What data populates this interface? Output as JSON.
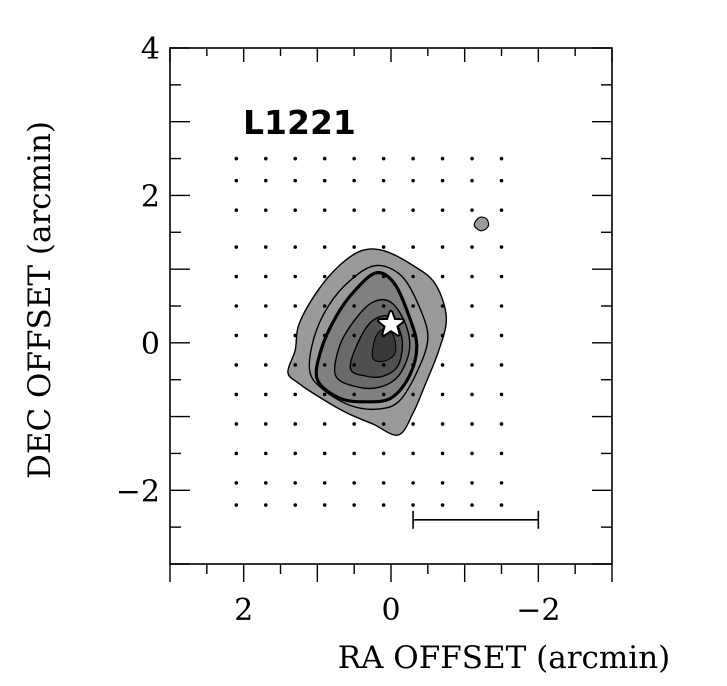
{
  "chart_data": {
    "type": "contour",
    "title": "L1221",
    "xlabel": "RA OFFSET (arcmin)",
    "ylabel": "DEC OFFSET (arcmin)",
    "xlim": [
      3,
      -3
    ],
    "ylim": [
      -3,
      4
    ],
    "x_reversed": true,
    "xticks": [
      2,
      0,
      -2
    ],
    "yticks": [
      4,
      2,
      0,
      -2
    ],
    "xtick_labels": [
      "2",
      "0",
      "−2"
    ],
    "ytick_labels": [
      "4",
      "2",
      "0",
      "−2"
    ],
    "sampling_grid": {
      "x": [
        2.1,
        1.7,
        1.3,
        0.9,
        0.5,
        0.1,
        -0.3,
        -0.7,
        -1.1,
        -1.5
      ],
      "y": [
        2.5,
        2.2,
        1.8,
        1.3,
        0.9,
        0.5,
        0.1,
        -0.3,
        -0.7,
        -1.1,
        -1.5,
        -1.9,
        -2.2
      ]
    },
    "contours": [
      {
        "level": 1,
        "fill": "#9a9a9a",
        "stroke_width": 1.4,
        "points": [
          [
            1.3,
            -0.1
          ],
          [
            1.25,
            0.25
          ],
          [
            1.0,
            0.7
          ],
          [
            0.7,
            1.05
          ],
          [
            0.4,
            1.25
          ],
          [
            0.1,
            1.25
          ],
          [
            -0.3,
            1.05
          ],
          [
            -0.6,
            0.8
          ],
          [
            -0.75,
            0.35
          ],
          [
            -0.65,
            -0.1
          ],
          [
            -0.45,
            -0.6
          ],
          [
            -0.3,
            -0.95
          ],
          [
            -0.1,
            -1.25
          ],
          [
            0.25,
            -1.1
          ],
          [
            0.6,
            -0.95
          ],
          [
            0.95,
            -0.75
          ],
          [
            1.25,
            -0.55
          ],
          [
            1.4,
            -0.4
          ]
        ]
      },
      {
        "level": 2,
        "fill": "#9a9a9a",
        "stroke_width": 1.4,
        "points": [
          [
            1.1,
            -0.4
          ],
          [
            1.05,
            0.05
          ],
          [
            0.85,
            0.5
          ],
          [
            0.55,
            0.85
          ],
          [
            0.2,
            1.05
          ],
          [
            -0.15,
            0.9
          ],
          [
            -0.4,
            0.45
          ],
          [
            -0.5,
            0.05
          ],
          [
            -0.35,
            -0.4
          ],
          [
            -0.1,
            -0.8
          ],
          [
            0.2,
            -0.9
          ],
          [
            0.55,
            -0.85
          ],
          [
            0.9,
            -0.65
          ]
        ]
      },
      {
        "level": 3,
        "fill": "#808080",
        "stroke_width": 3.2,
        "points": [
          [
            1.0,
            -0.5
          ],
          [
            0.95,
            -0.1
          ],
          [
            0.75,
            0.35
          ],
          [
            0.5,
            0.7
          ],
          [
            0.2,
            0.95
          ],
          [
            -0.05,
            0.8
          ],
          [
            -0.25,
            0.35
          ],
          [
            -0.35,
            -0.05
          ],
          [
            -0.25,
            -0.45
          ],
          [
            0.0,
            -0.75
          ],
          [
            0.35,
            -0.8
          ],
          [
            0.7,
            -0.75
          ]
        ]
      },
      {
        "level": 4,
        "fill": "#6a6a6a",
        "stroke_width": 1.4,
        "points": [
          [
            0.75,
            -0.45
          ],
          [
            0.7,
            -0.05
          ],
          [
            0.5,
            0.3
          ],
          [
            0.25,
            0.55
          ],
          [
            0.0,
            0.55
          ],
          [
            -0.2,
            0.25
          ],
          [
            -0.25,
            -0.1
          ],
          [
            -0.1,
            -0.45
          ],
          [
            0.15,
            -0.6
          ],
          [
            0.45,
            -0.6
          ]
        ]
      },
      {
        "level": 5,
        "fill": "#505050",
        "stroke_width": 1.4,
        "points": [
          [
            0.55,
            -0.35
          ],
          [
            0.45,
            0.0
          ],
          [
            0.25,
            0.3
          ],
          [
            0.0,
            0.35
          ],
          [
            -0.15,
            0.05
          ],
          [
            -0.1,
            -0.3
          ],
          [
            0.1,
            -0.45
          ],
          [
            0.35,
            -0.45
          ]
        ]
      },
      {
        "level": 6,
        "fill": "#383838",
        "stroke_width": 1.0,
        "points": [
          [
            0.25,
            -0.2
          ],
          [
            0.2,
            0.1
          ],
          [
            0.05,
            0.2
          ],
          [
            -0.05,
            0.05
          ],
          [
            -0.05,
            -0.15
          ],
          [
            0.1,
            -0.25
          ]
        ]
      },
      {
        "level": 1,
        "fill": "#9a9a9a",
        "stroke_width": 1.2,
        "points": [
          [
            -1.13,
            1.6
          ],
          [
            -1.2,
            1.7
          ],
          [
            -1.3,
            1.68
          ],
          [
            -1.32,
            1.58
          ],
          [
            -1.22,
            1.52
          ]
        ]
      }
    ],
    "star": {
      "x": 0.0,
      "y": 0.25,
      "symbol": "star"
    },
    "scale_bar": {
      "x_from": -0.3,
      "x_to": -2.0,
      "y": -2.4
    },
    "colors": {
      "axes": "#000000",
      "background": "#ffffff",
      "star_fill": "#ffffff"
    }
  }
}
